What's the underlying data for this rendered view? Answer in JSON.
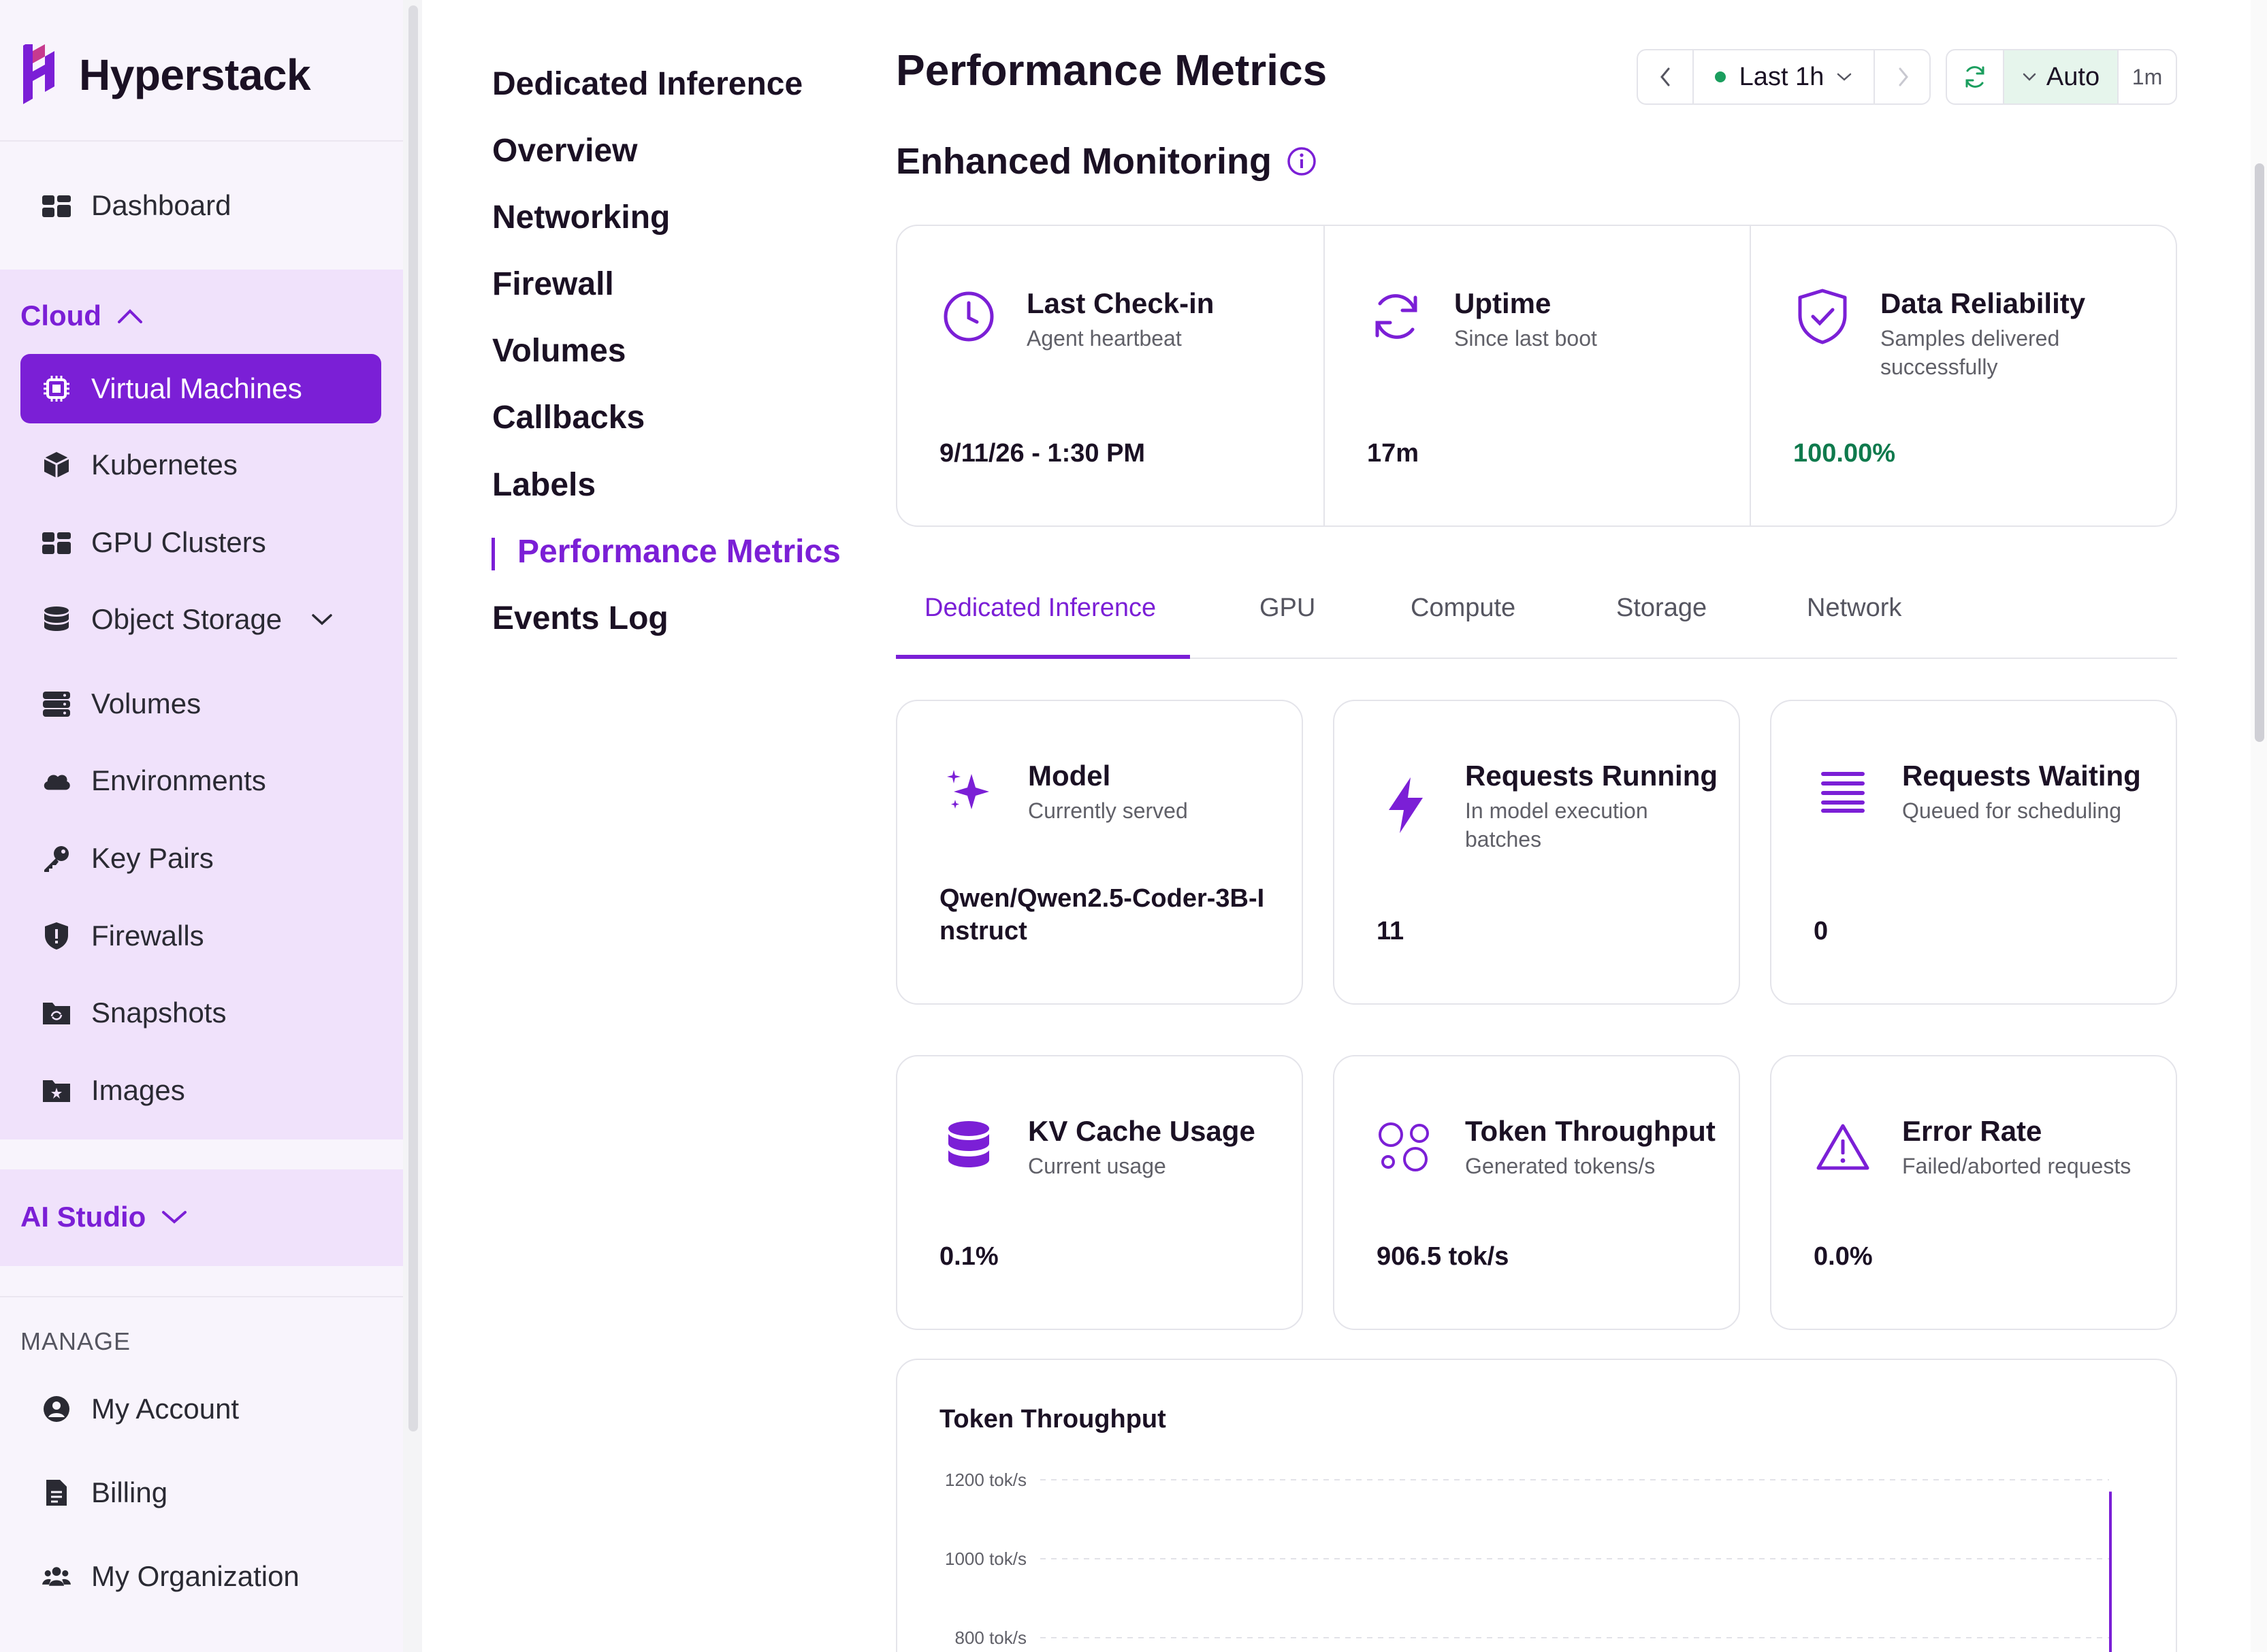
{
  "brand": {
    "name": "Hyperstack"
  },
  "sidebar": {
    "dashboard": "Dashboard",
    "cloud_section": "Cloud",
    "cloud_items": [
      {
        "label": "Virtual Machines",
        "icon": "chip-icon",
        "active": true
      },
      {
        "label": "Kubernetes",
        "icon": "cube-icon"
      },
      {
        "label": "GPU Clusters",
        "icon": "grid-icon"
      },
      {
        "label": "Object Storage",
        "icon": "database-icon"
      },
      {
        "label": "Volumes",
        "icon": "hard-drive-icon"
      },
      {
        "label": "Environments",
        "icon": "cloud-icon"
      },
      {
        "label": "Key Pairs",
        "icon": "key-icon"
      },
      {
        "label": "Firewalls",
        "icon": "shield-icon"
      },
      {
        "label": "Snapshots",
        "icon": "folder-refresh-icon"
      },
      {
        "label": "Images",
        "icon": "folder-star-icon"
      }
    ],
    "ai_studio": "AI Studio",
    "manage_label": "MANAGE",
    "manage_items": [
      {
        "label": "My Account",
        "icon": "user-circle-icon"
      },
      {
        "label": "Billing",
        "icon": "file-icon"
      },
      {
        "label": "My Organization",
        "icon": "users-icon"
      }
    ]
  },
  "subnav": {
    "items": [
      "Dedicated Inference",
      "Overview",
      "Networking",
      "Firewall",
      "Volumes",
      "Callbacks",
      "Labels",
      "Performance Metrics",
      "Events Log"
    ],
    "active": "Performance Metrics"
  },
  "header": {
    "title": "Performance Metrics",
    "range_label": "Last 1h",
    "auto_label": "Auto",
    "interval_label": "1m"
  },
  "monitoring": {
    "title": "Enhanced Monitoring",
    "cards": [
      {
        "title": "Last Check-in",
        "subtitle": "Agent heartbeat",
        "value": "9/11/26 - 1:30 PM",
        "icon": "clock-icon"
      },
      {
        "title": "Uptime",
        "subtitle": "Since last boot",
        "value": "17m",
        "icon": "refresh-icon"
      },
      {
        "title": "Data Reliability",
        "subtitle": "Samples delivered successfully",
        "value": "100.00%",
        "icon": "shield-check-icon"
      }
    ]
  },
  "tabs": {
    "items": [
      "Dedicated Inference",
      "GPU",
      "Compute",
      "Storage",
      "Network"
    ],
    "active": "Dedicated Inference"
  },
  "metrics": [
    {
      "title": "Model",
      "subtitle": "Currently served",
      "value": "Qwen/Qwen2.5-Coder-3B-Instruct",
      "icon": "sparkles-icon"
    },
    {
      "title": "Requests Running",
      "subtitle": "In model execution batches",
      "value": "11",
      "icon": "bolt-icon"
    },
    {
      "title": "Requests Waiting",
      "subtitle": "Queued for scheduling",
      "value": "0",
      "icon": "list-icon"
    },
    {
      "title": "KV Cache Usage",
      "subtitle": "Current usage",
      "value": "0.1%",
      "icon": "database-icon"
    },
    {
      "title": "Token Throughput",
      "subtitle": "Generated tokens/s",
      "value": "906.5 tok/s",
      "icon": "circles-icon"
    },
    {
      "title": "Error Rate",
      "subtitle": "Failed/aborted requests",
      "value": "0.0%",
      "icon": "alert-triangle-icon"
    }
  ],
  "colors": {
    "accent": "#7b1fd6",
    "success": "#0f7a4d",
    "sidebar_bg": "#f8f4fc",
    "group_bg": "#f0e2fb"
  },
  "chart_data": {
    "type": "line",
    "title": "Token Throughput",
    "ylabel": "",
    "xlabel": "",
    "y_ticks": [
      "1200 tok/s",
      "1000 tok/s",
      "800 tok/s"
    ],
    "series": [
      {
        "values": [
          800,
          1170
        ]
      }
    ],
    "grid": true
  }
}
